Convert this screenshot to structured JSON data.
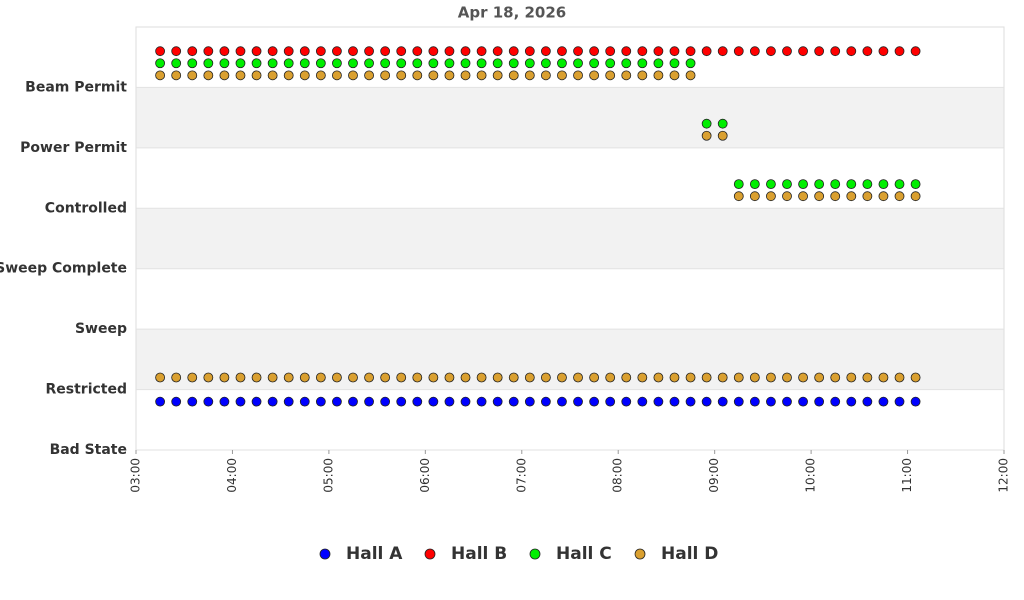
{
  "chart_data": {
    "type": "scatter",
    "title": "Apr 18, 2026",
    "xlim": [
      "03:00",
      "12:00"
    ],
    "xticks": [
      "03:00",
      "04:00",
      "05:00",
      "06:00",
      "07:00",
      "08:00",
      "09:00",
      "10:00",
      "11:00",
      "12:00"
    ],
    "ylim": [
      0,
      7
    ],
    "yticks": [
      {
        "value": 0,
        "label": "Bad State"
      },
      {
        "value": 1,
        "label": "Restricted"
      },
      {
        "value": 2,
        "label": "Sweep"
      },
      {
        "value": 3,
        "label": "Sweep Complete"
      },
      {
        "value": 4,
        "label": "Controlled"
      },
      {
        "value": 5,
        "label": "Power Permit"
      },
      {
        "value": 6,
        "label": "Beam Permit"
      }
    ],
    "legend": "bottom",
    "series": [
      {
        "name": "Hall A",
        "color": "#0000ff",
        "x": [
          "03:15",
          "03:25",
          "03:35",
          "03:45",
          "03:55",
          "04:05",
          "04:15",
          "04:25",
          "04:35",
          "04:45",
          "04:55",
          "05:05",
          "05:15",
          "05:25",
          "05:35",
          "05:45",
          "05:55",
          "06:05",
          "06:15",
          "06:25",
          "06:35",
          "06:45",
          "06:55",
          "07:05",
          "07:15",
          "07:25",
          "07:35",
          "07:45",
          "07:55",
          "08:05",
          "08:15",
          "08:25",
          "08:35",
          "08:45",
          "08:55",
          "09:05",
          "09:15",
          "09:25",
          "09:35",
          "09:45",
          "09:55",
          "10:05",
          "10:15",
          "10:25",
          "10:35",
          "10:45",
          "10:55",
          "11:05"
        ],
        "values": [
          0.8,
          0.8,
          0.8,
          0.8,
          0.8,
          0.8,
          0.8,
          0.8,
          0.8,
          0.8,
          0.8,
          0.8,
          0.8,
          0.8,
          0.8,
          0.8,
          0.8,
          0.8,
          0.8,
          0.8,
          0.8,
          0.8,
          0.8,
          0.8,
          0.8,
          0.8,
          0.8,
          0.8,
          0.8,
          0.8,
          0.8,
          0.8,
          0.8,
          0.8,
          0.8,
          0.8,
          0.8,
          0.8,
          0.8,
          0.8,
          0.8,
          0.8,
          0.8,
          0.8,
          0.8,
          0.8,
          0.8,
          0.8
        ]
      },
      {
        "name": "Hall B",
        "color": "#ff0000",
        "x": [
          "03:15",
          "03:25",
          "03:35",
          "03:45",
          "03:55",
          "04:05",
          "04:15",
          "04:25",
          "04:35",
          "04:45",
          "04:55",
          "05:05",
          "05:15",
          "05:25",
          "05:35",
          "05:45",
          "05:55",
          "06:05",
          "06:15",
          "06:25",
          "06:35",
          "06:45",
          "06:55",
          "07:05",
          "07:15",
          "07:25",
          "07:35",
          "07:45",
          "07:55",
          "08:05",
          "08:15",
          "08:25",
          "08:35",
          "08:45",
          "08:55",
          "09:05",
          "09:15",
          "09:25",
          "09:35",
          "09:45",
          "09:55",
          "10:05",
          "10:15",
          "10:25",
          "10:35",
          "10:45",
          "10:55",
          "11:05"
        ],
        "values": [
          6.6,
          6.6,
          6.6,
          6.6,
          6.6,
          6.6,
          6.6,
          6.6,
          6.6,
          6.6,
          6.6,
          6.6,
          6.6,
          6.6,
          6.6,
          6.6,
          6.6,
          6.6,
          6.6,
          6.6,
          6.6,
          6.6,
          6.6,
          6.6,
          6.6,
          6.6,
          6.6,
          6.6,
          6.6,
          6.6,
          6.6,
          6.6,
          6.6,
          6.6,
          6.6,
          6.6,
          6.6,
          6.6,
          6.6,
          6.6,
          6.6,
          6.6,
          6.6,
          6.6,
          6.6,
          6.6,
          6.6,
          6.6
        ]
      },
      {
        "name": "Hall C",
        "color": "#00ee00",
        "x": [
          "03:15",
          "03:25",
          "03:35",
          "03:45",
          "03:55",
          "04:05",
          "04:15",
          "04:25",
          "04:35",
          "04:45",
          "04:55",
          "05:05",
          "05:15",
          "05:25",
          "05:35",
          "05:45",
          "05:55",
          "06:05",
          "06:15",
          "06:25",
          "06:35",
          "06:45",
          "06:55",
          "07:05",
          "07:15",
          "07:25",
          "07:35",
          "07:45",
          "07:55",
          "08:05",
          "08:15",
          "08:25",
          "08:35",
          "08:45",
          "08:55",
          "09:05",
          "09:15",
          "09:25",
          "09:35",
          "09:45",
          "09:55",
          "10:05",
          "10:15",
          "10:25",
          "10:35",
          "10:45",
          "10:55",
          "11:05"
        ],
        "values": [
          6.4,
          6.4,
          6.4,
          6.4,
          6.4,
          6.4,
          6.4,
          6.4,
          6.4,
          6.4,
          6.4,
          6.4,
          6.4,
          6.4,
          6.4,
          6.4,
          6.4,
          6.4,
          6.4,
          6.4,
          6.4,
          6.4,
          6.4,
          6.4,
          6.4,
          6.4,
          6.4,
          6.4,
          6.4,
          6.4,
          6.4,
          6.4,
          6.4,
          6.4,
          5.4,
          5.4,
          4.4,
          4.4,
          4.4,
          4.4,
          4.4,
          4.4,
          4.4,
          4.4,
          4.4,
          4.4,
          4.4,
          4.4
        ]
      },
      {
        "name": "Hall D",
        "color": "#daa030",
        "x": [
          "03:15",
          "03:25",
          "03:35",
          "03:45",
          "03:55",
          "04:05",
          "04:15",
          "04:25",
          "04:35",
          "04:45",
          "04:55",
          "05:05",
          "05:15",
          "05:25",
          "05:35",
          "05:45",
          "05:55",
          "06:05",
          "06:15",
          "06:25",
          "06:35",
          "06:45",
          "06:55",
          "07:05",
          "07:15",
          "07:25",
          "07:35",
          "07:45",
          "07:55",
          "08:05",
          "08:15",
          "08:25",
          "08:35",
          "08:45",
          "08:55",
          "09:05",
          "09:15",
          "09:25",
          "09:35",
          "09:45",
          "09:55",
          "10:05",
          "10:15",
          "10:25",
          "10:35",
          "10:45",
          "10:55",
          "11:05",
          "03:15",
          "03:25",
          "03:35",
          "03:45",
          "03:55",
          "04:05",
          "04:15",
          "04:25",
          "04:35",
          "04:45",
          "04:55",
          "05:05",
          "05:15",
          "05:25",
          "05:35",
          "05:45",
          "05:55",
          "06:05",
          "06:15",
          "06:25",
          "06:35",
          "06:45",
          "06:55",
          "07:05",
          "07:15",
          "07:25",
          "07:35",
          "07:45",
          "07:55",
          "08:05",
          "08:15",
          "08:25",
          "08:35",
          "08:45",
          "08:55",
          "09:05",
          "09:15",
          "09:25",
          "09:35",
          "09:45",
          "09:55",
          "10:05",
          "10:15",
          "10:25",
          "10:35",
          "10:45",
          "10:55",
          "11:05"
        ],
        "values": [
          6.2,
          6.2,
          6.2,
          6.2,
          6.2,
          6.2,
          6.2,
          6.2,
          6.2,
          6.2,
          6.2,
          6.2,
          6.2,
          6.2,
          6.2,
          6.2,
          6.2,
          6.2,
          6.2,
          6.2,
          6.2,
          6.2,
          6.2,
          6.2,
          6.2,
          6.2,
          6.2,
          6.2,
          6.2,
          6.2,
          6.2,
          6.2,
          6.2,
          6.2,
          5.2,
          5.2,
          4.2,
          4.2,
          4.2,
          4.2,
          4.2,
          4.2,
          4.2,
          4.2,
          4.2,
          4.2,
          4.2,
          4.2,
          1.2,
          1.2,
          1.2,
          1.2,
          1.2,
          1.2,
          1.2,
          1.2,
          1.2,
          1.2,
          1.2,
          1.2,
          1.2,
          1.2,
          1.2,
          1.2,
          1.2,
          1.2,
          1.2,
          1.2,
          1.2,
          1.2,
          1.2,
          1.2,
          1.2,
          1.2,
          1.2,
          1.2,
          1.2,
          1.2,
          1.2,
          1.2,
          1.2,
          1.2,
          1.2,
          1.2,
          1.2,
          1.2,
          1.2,
          1.2,
          1.2,
          1.2,
          1.2,
          1.2,
          1.2,
          1.2,
          1.2,
          1.2
        ]
      }
    ]
  }
}
